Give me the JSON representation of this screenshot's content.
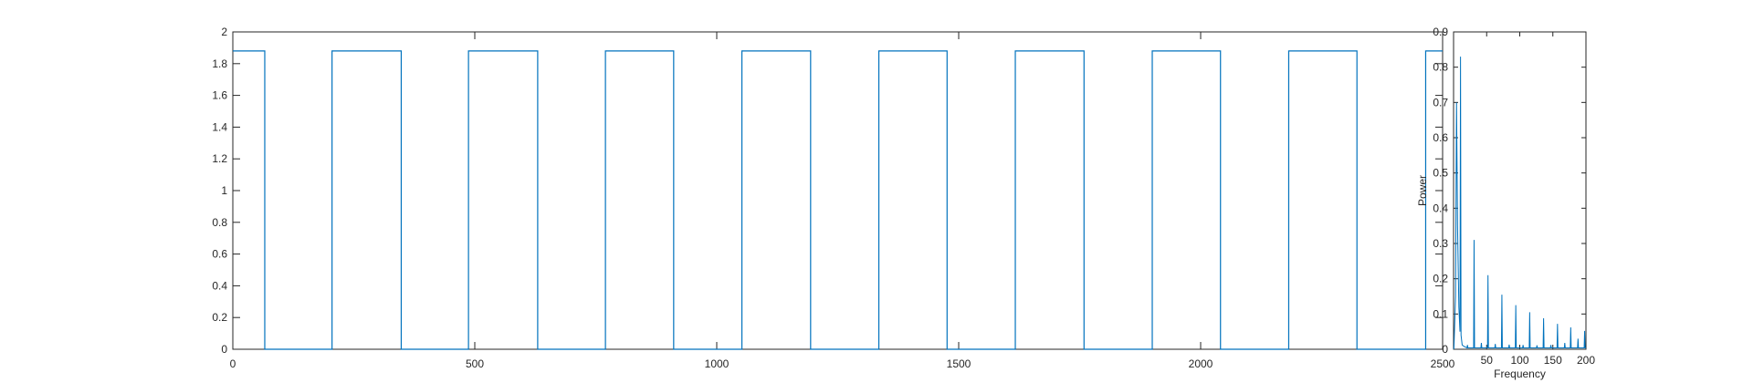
{
  "chart_data": [
    {
      "type": "line",
      "title": "",
      "xlabel": "",
      "ylabel": "",
      "xlim": [
        0,
        2500
      ],
      "ylim": [
        0,
        2
      ],
      "xticks": [
        0,
        500,
        1000,
        1500,
        2000,
        2500
      ],
      "yticks": [
        0,
        0.2,
        0.4,
        0.6,
        0.8,
        1,
        1.2,
        1.4,
        1.6,
        1.8,
        2
      ],
      "xtick_labels": [
        "0",
        "500",
        "1000",
        "1500",
        "2000",
        "2500"
      ],
      "ytick_labels": [
        "0",
        "0.2",
        "0.4",
        "0.6",
        "0.8",
        "1",
        "1.2",
        "1.4",
        "1.6",
        "1.8",
        "2"
      ],
      "grid": false,
      "series": [
        {
          "x": [
            0,
            66,
            66,
            205,
            205,
            348,
            348,
            487,
            487,
            630,
            630,
            770,
            770,
            911,
            911,
            1052,
            1052,
            1194,
            1194,
            1335,
            1335,
            1476,
            1476,
            1617,
            1617,
            1759,
            1759,
            1900,
            1900,
            2041,
            2041,
            2182,
            2182,
            2323,
            2323,
            2465,
            2465,
            2500
          ],
          "y": [
            1.88,
            1.88,
            0,
            0,
            1.88,
            1.88,
            0,
            0,
            1.88,
            1.88,
            0,
            0,
            1.88,
            1.88,
            0,
            0,
            1.88,
            1.88,
            0,
            0,
            1.88,
            1.88,
            0,
            0,
            1.88,
            1.88,
            0,
            0,
            1.88,
            1.88,
            0,
            0,
            1.88,
            1.88,
            0,
            0,
            1.88,
            1.88
          ]
        }
      ]
    },
    {
      "type": "line",
      "title": "",
      "xlabel": "Frequency",
      "ylabel": "Power",
      "xlim": [
        0,
        200
      ],
      "ylim": [
        0,
        0.9
      ],
      "xticks": [
        50,
        100,
        150,
        200
      ],
      "yticks": [
        0,
        0.1,
        0.2,
        0.3,
        0.4,
        0.5,
        0.6,
        0.7,
        0.8,
        0.9
      ],
      "xtick_labels": [
        "50",
        "100",
        "150",
        "200"
      ],
      "ytick_labels": [
        "0",
        "0.1",
        "0.2",
        "0.3",
        "0.4",
        "0.5",
        "0.6",
        "0.7",
        "0.8",
        "0.9"
      ],
      "grid": false,
      "peaks": [
        {
          "x": 10.5,
          "y": 0.83
        },
        {
          "x": 31,
          "y": 0.31
        },
        {
          "x": 52,
          "y": 0.21
        },
        {
          "x": 73,
          "y": 0.155
        },
        {
          "x": 94,
          "y": 0.125
        },
        {
          "x": 115,
          "y": 0.105
        },
        {
          "x": 136,
          "y": 0.088
        },
        {
          "x": 157,
          "y": 0.072
        },
        {
          "x": 177,
          "y": 0.062
        },
        {
          "x": 198,
          "y": 0.052
        }
      ],
      "minor_peaks": [
        {
          "x": 21,
          "y": 0.012
        },
        {
          "x": 42,
          "y": 0.018
        },
        {
          "x": 63,
          "y": 0.015
        },
        {
          "x": 84,
          "y": 0.013
        },
        {
          "x": 105,
          "y": 0.012
        },
        {
          "x": 126,
          "y": 0.011
        },
        {
          "x": 147,
          "y": 0.012
        },
        {
          "x": 168,
          "y": 0.018
        },
        {
          "x": 188,
          "y": 0.03
        }
      ],
      "dc": {
        "x": 0.5,
        "y": 0.0
      },
      "leading_rise": {
        "x": 4.5,
        "y": 0.7
      },
      "series_color": "#0072BD"
    }
  ],
  "colors": {
    "line": "#0072BD",
    "axis": "#262626",
    "background": "#ffffff"
  }
}
